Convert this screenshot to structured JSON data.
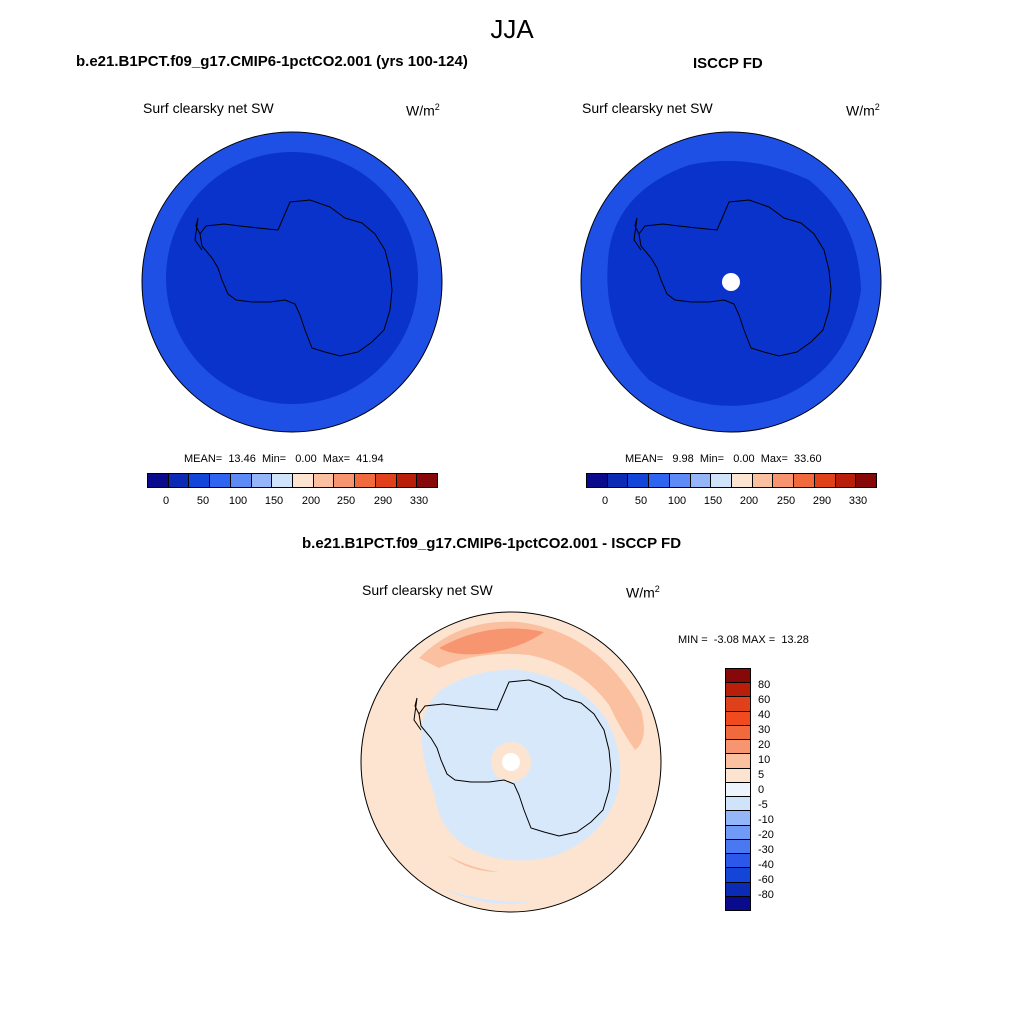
{
  "title": "JJA",
  "panels": [
    {
      "title": "b.e21.B1PCT.f09_g17.CMIP6-1pctCO2.001 (yrs 100-124)",
      "variable": "Surf clearsky net SW",
      "units_base": "W/m",
      "units_exp": "2",
      "stats": "MEAN=  13.46  Min=   0.00  Max=  41.94"
    },
    {
      "title": "ISCCP FD",
      "variable": "Surf clearsky net SW",
      "units_base": "W/m",
      "units_exp": "2",
      "stats": "MEAN=   9.98  Min=   0.00  Max=  33.60"
    },
    {
      "title": "b.e21.B1PCT.f09_g17.CMIP6-1pctCO2.001 - ISCCP FD",
      "variable": "Surf clearsky net SW",
      "units_base": "W/m",
      "units_exp": "2",
      "stats": "MIN =  -3.08 MAX =  13.28"
    }
  ],
  "colorbar_top": {
    "colors": [
      "#0a0a8c",
      "#0b2bb4",
      "#1245d8",
      "#2e64f0",
      "#5d8bf5",
      "#94b6f8",
      "#cfe3fb",
      "#fde4d0",
      "#fbc0a0",
      "#f89571",
      "#f06a3e",
      "#e0401a",
      "#b81e0a",
      "#870808"
    ],
    "tick_labels": [
      "0",
      "50",
      "100",
      "150",
      "200",
      "250",
      "290",
      "330"
    ]
  },
  "colorbar_diff": {
    "colors_top_to_bottom": [
      "#870808",
      "#b81e0a",
      "#e0401a",
      "#f04a1e",
      "#f06a3e",
      "#f89571",
      "#fbc0a0",
      "#fde4d0",
      "#edf4fc",
      "#cfe3fb",
      "#94b6f8",
      "#6f9af6",
      "#4a78f2",
      "#2b58ea",
      "#1245d8",
      "#0b2bb4",
      "#0a0a8c"
    ],
    "tick_labels_top_to_bottom": [
      "80",
      "60",
      "40",
      "30",
      "20",
      "10",
      "5",
      "0",
      "-5",
      "-10",
      "-20",
      "-30",
      "-40",
      "-60",
      "-80"
    ]
  },
  "map_colors": {
    "ocean_ring": "#1f50e6",
    "interior": "#0a33cc",
    "diff_base": "#fde4d0",
    "diff_neg": "#d8e8fb",
    "diff_pos": "#fbc0a0"
  }
}
